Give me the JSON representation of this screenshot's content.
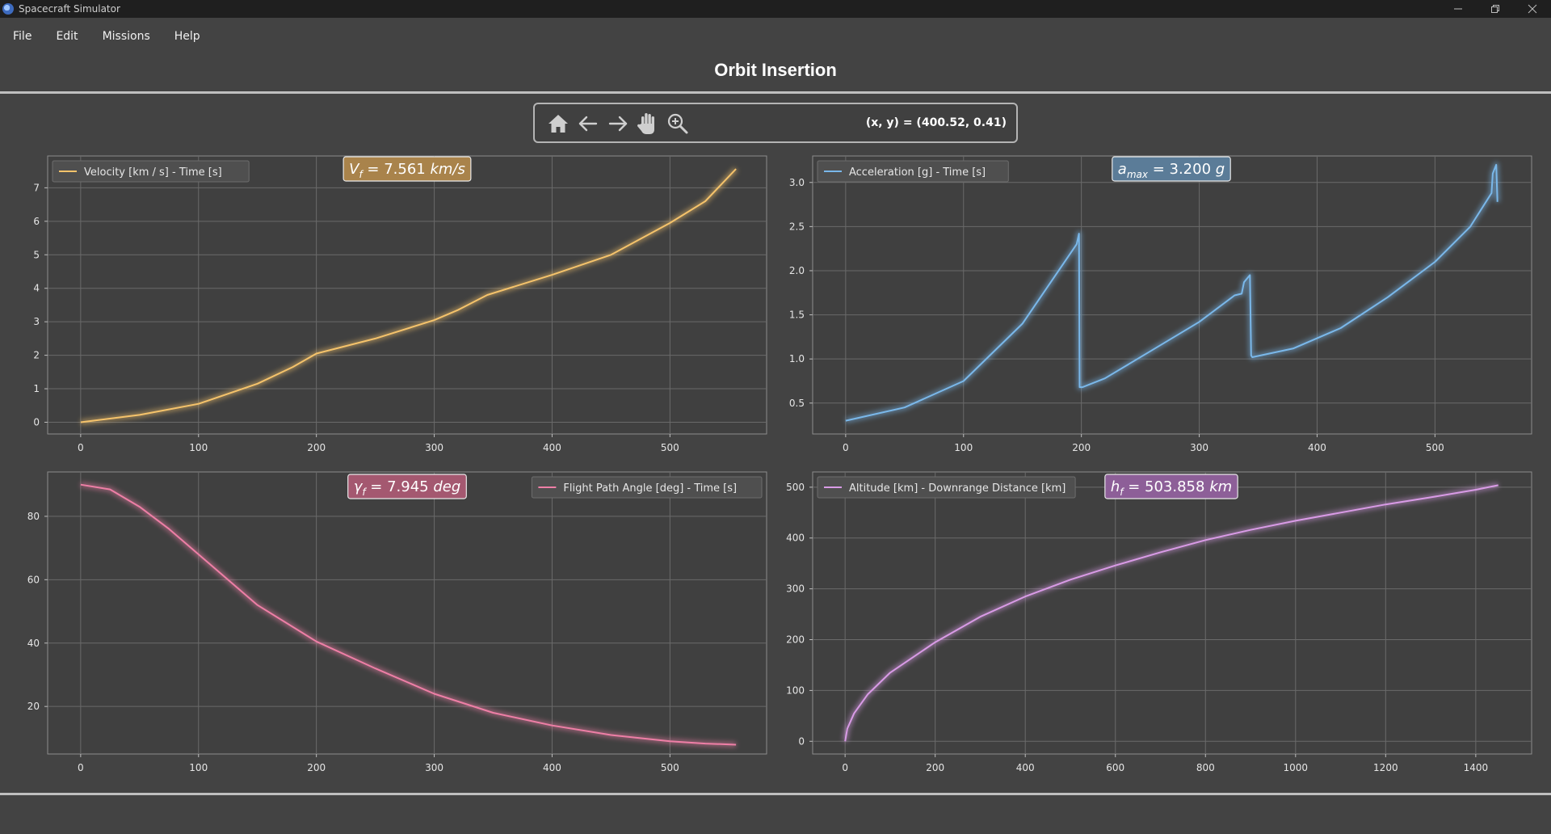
{
  "window": {
    "title": "Spacecraft Simulator"
  },
  "menu": [
    "File",
    "Edit",
    "Missions",
    "Help"
  ],
  "page_title": "Orbit Insertion",
  "toolbar": {
    "coords_readout": "(x, y) = (400.52, 0.41)",
    "tools": [
      "home-icon",
      "back-icon",
      "forward-icon",
      "pan-hand-icon",
      "zoom-icon"
    ]
  },
  "colors": {
    "velocity": "#f5c36b",
    "acceleration": "#7ab8ea",
    "flight_path": "#ee7fa6",
    "altitude": "#d99be6"
  },
  "chart_data": [
    {
      "type": "line",
      "legend": "Velocity [km / s] - Time [s]",
      "legend_position": "top-left",
      "annotation": {
        "symbol": "V",
        "sub": "f",
        "value": "= 7.561",
        "unit": "km/s"
      },
      "xlim": [
        -28,
        582
      ],
      "ylim": [
        -0.35,
        7.95
      ],
      "xticks": [
        0,
        100,
        200,
        300,
        400,
        500
      ],
      "yticks": [
        0,
        1,
        2,
        3,
        4,
        5,
        6,
        7
      ],
      "grid": true,
      "x": [
        0,
        50,
        100,
        150,
        180,
        200,
        250,
        300,
        320,
        345,
        400,
        450,
        500,
        530,
        556
      ],
      "y": [
        0,
        0.22,
        0.55,
        1.15,
        1.65,
        2.05,
        2.5,
        3.05,
        3.35,
        3.8,
        4.4,
        5.0,
        5.95,
        6.6,
        7.561
      ]
    },
    {
      "type": "line",
      "legend": "Acceleration [g] - Time [s]",
      "legend_position": "top-left",
      "annotation": {
        "symbol": "a",
        "sub": "max",
        "value": "= 3.200",
        "unit": "g"
      },
      "xlim": [
        -28,
        582
      ],
      "ylim": [
        0.15,
        3.3
      ],
      "xticks": [
        0,
        100,
        200,
        300,
        400,
        500
      ],
      "yticks": [
        0.5,
        1.0,
        1.5,
        2.0,
        2.5,
        3.0
      ],
      "grid": true,
      "x": [
        0,
        50,
        100,
        150,
        196,
        198,
        198.5,
        201,
        220,
        260,
        300,
        330,
        336,
        338,
        343,
        344,
        345,
        380,
        420,
        460,
        500,
        530,
        548,
        549,
        552,
        553
      ],
      "y": [
        0.3,
        0.45,
        0.75,
        1.4,
        2.3,
        2.42,
        0.68,
        0.68,
        0.78,
        1.1,
        1.42,
        1.72,
        1.74,
        1.87,
        1.95,
        1.04,
        1.02,
        1.12,
        1.35,
        1.7,
        2.1,
        2.5,
        2.88,
        3.1,
        3.2,
        2.78
      ]
    },
    {
      "type": "line",
      "legend": "Flight Path Angle [deg] - Time [s]",
      "legend_position": "top-right",
      "annotation": {
        "symbol": "γ",
        "sub": "f",
        "value": "= 7.945",
        "unit": "deg"
      },
      "xlim": [
        -28,
        582
      ],
      "ylim": [
        5,
        94
      ],
      "xticks": [
        0,
        100,
        200,
        300,
        400,
        500
      ],
      "yticks": [
        20,
        40,
        60,
        80
      ],
      "grid": true,
      "x": [
        0,
        25,
        50,
        75,
        100,
        150,
        200,
        250,
        300,
        350,
        400,
        450,
        500,
        530,
        556
      ],
      "y": [
        90,
        88.5,
        83,
        76,
        68,
        52,
        40.5,
        32,
        24,
        18,
        14,
        11,
        9,
        8.3,
        7.945
      ]
    },
    {
      "type": "line",
      "legend": "Altitude [km] - Downrange Distance [km]",
      "legend_position": "top-left",
      "annotation": {
        "symbol": "h",
        "sub": "f",
        "value": "= 503.858",
        "unit": "km"
      },
      "xlim": [
        -72,
        1524
      ],
      "ylim": [
        -25,
        530
      ],
      "xticks": [
        0,
        200,
        400,
        600,
        800,
        1000,
        1200,
        1400
      ],
      "yticks": [
        0,
        100,
        200,
        300,
        400,
        500
      ],
      "grid": true,
      "x": [
        0,
        5,
        20,
        50,
        100,
        200,
        300,
        400,
        500,
        600,
        700,
        800,
        900,
        1000,
        1100,
        1200,
        1300,
        1400,
        1450
      ],
      "y": [
        0,
        25,
        55,
        92,
        135,
        195,
        245,
        285,
        318,
        346,
        372,
        396,
        416,
        434,
        450,
        466,
        480,
        495,
        503.858
      ]
    }
  ]
}
